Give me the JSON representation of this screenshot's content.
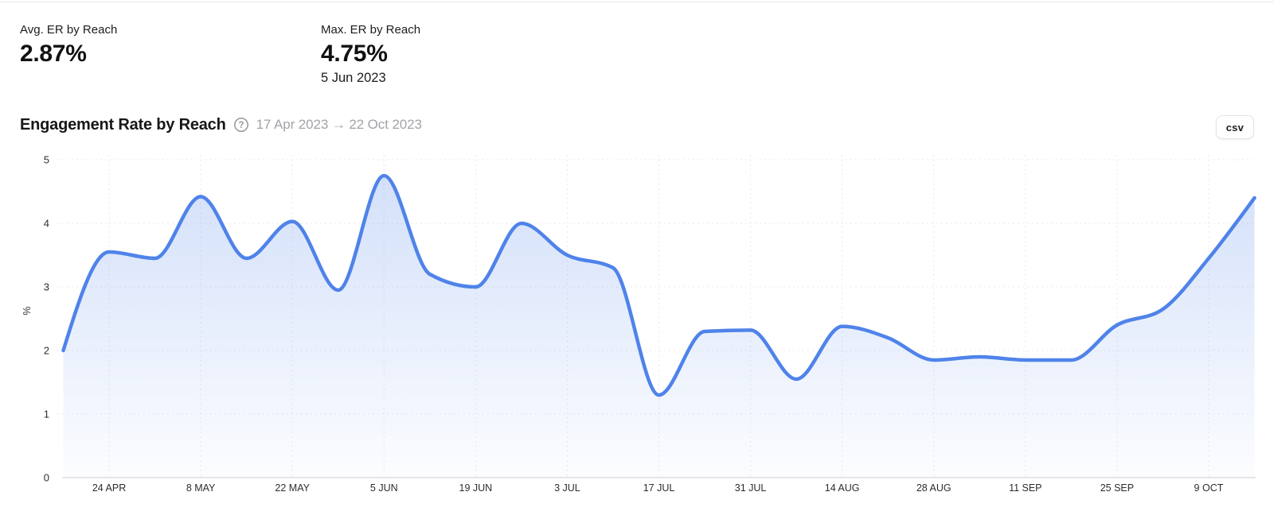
{
  "stats": {
    "avg": {
      "label": "Avg. ER by Reach",
      "value": "2.87%"
    },
    "max": {
      "label": "Max. ER by Reach",
      "value": "4.75%",
      "date": "5 Jun 2023"
    }
  },
  "header": {
    "title": "Engagement Rate by Reach",
    "help_icon": "question-mark-circle",
    "date_range": "17 Apr 2023 → 22 Oct 2023",
    "csv_label": "csv"
  },
  "chart_data": {
    "type": "area",
    "title": "Engagement Rate by Reach",
    "xlabel": "",
    "ylabel": "%",
    "ylim": [
      0,
      5
    ],
    "yticks": [
      0,
      1,
      2,
      3,
      4,
      5
    ],
    "grid": "dotted",
    "legend": false,
    "x": [
      "17 Apr 2023",
      "24 Apr 2023",
      "1 May 2023",
      "8 May 2023",
      "15 May 2023",
      "22 May 2023",
      "29 May 2023",
      "5 Jun 2023",
      "12 Jun 2023",
      "19 Jun 2023",
      "26 Jun 2023",
      "3 Jul 2023",
      "10 Jul 2023",
      "17 Jul 2023",
      "24 Jul 2023",
      "31 Jul 2023",
      "7 Aug 2023",
      "14 Aug 2023",
      "21 Aug 2023",
      "28 Aug 2023",
      "4 Sep 2023",
      "11 Sep 2023",
      "18 Sep 2023",
      "25 Sep 2023",
      "2 Oct 2023",
      "9 Oct 2023",
      "16 Oct 2023"
    ],
    "values": [
      2.0,
      3.55,
      3.45,
      4.42,
      3.45,
      4.03,
      2.95,
      4.75,
      3.2,
      3.0,
      4.0,
      3.5,
      3.3,
      1.3,
      2.3,
      2.32,
      1.55,
      2.38,
      2.2,
      1.85,
      1.9,
      1.85,
      1.85,
      2.4,
      2.65,
      3.45,
      4.4
    ],
    "x_tick_labels": [
      "24 APR",
      "8 MAY",
      "22 MAY",
      "5 JUN",
      "19 JUN",
      "3 JUL",
      "17 JUL",
      "31 JUL",
      "14 AUG",
      "28 AUG",
      "11 SEP",
      "25 SEP",
      "9 OCT"
    ],
    "x_tick_indices": [
      1,
      3,
      5,
      7,
      9,
      11,
      13,
      15,
      17,
      19,
      21,
      23,
      25
    ],
    "series_name": "ER by Reach",
    "colors": {
      "line": "#4f83ea",
      "fill_top": "rgba(79,131,234,0.26)",
      "fill_bottom": "rgba(79,131,234,0.02)",
      "grid": "#e4e4e8",
      "axis": "#d7d7db",
      "tick_text": "#2d2d30",
      "muted_text": "#a3a3a8"
    }
  }
}
